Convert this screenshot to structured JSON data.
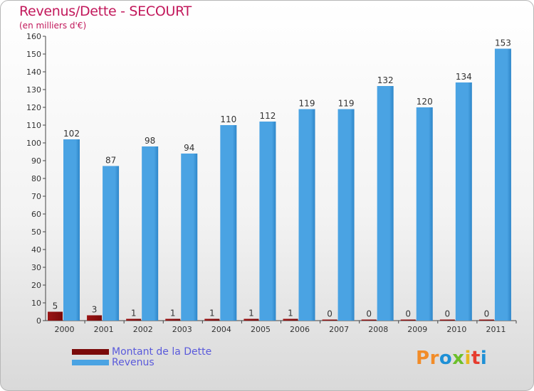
{
  "header": {
    "title": "Revenus/Dette - SECOURT",
    "subtitle": "(en milliers d'€)"
  },
  "legend": {
    "items": [
      {
        "label": "Montant de la Dette",
        "color": "#7a0a0a"
      },
      {
        "label": "Revenus",
        "color": "#4aa3e3"
      }
    ]
  },
  "logo": {
    "text": "Proxiti",
    "letters": [
      "P",
      "r",
      "o",
      "x",
      "i",
      "t",
      "i"
    ],
    "colors": [
      "#f28c28",
      "#f28c28",
      "#1e90d6",
      "#6cbf2a",
      "#e8b81e",
      "#e63b2e",
      "#1e90d6"
    ]
  },
  "colors": {
    "debt": "#7a0a0a",
    "revenue": "#4aa3e3",
    "revenue_dark": "#2e86c9",
    "axis": "#444444",
    "grid": "#ffffff"
  },
  "chart_data": {
    "type": "bar",
    "title": "Revenus/Dette - SECOURT",
    "ylabel": "(en milliers d'€)",
    "xlabel": "",
    "ylim": [
      0,
      160
    ],
    "yticks": [
      0,
      10,
      20,
      30,
      40,
      50,
      60,
      70,
      80,
      90,
      100,
      110,
      120,
      130,
      140,
      150,
      160
    ],
    "categories": [
      "2000",
      "2001",
      "2002",
      "2003",
      "2004",
      "2005",
      "2006",
      "2007",
      "2008",
      "2009",
      "2010",
      "2011"
    ],
    "series": [
      {
        "name": "Montant de la Dette",
        "values": [
          5,
          3,
          1,
          1,
          1,
          1,
          1,
          0,
          0,
          0,
          0,
          0
        ]
      },
      {
        "name": "Revenus",
        "values": [
          102,
          87,
          98,
          94,
          110,
          112,
          119,
          119,
          132,
          120,
          134,
          153
        ]
      }
    ],
    "legend": "bottom-left",
    "grid": false
  }
}
